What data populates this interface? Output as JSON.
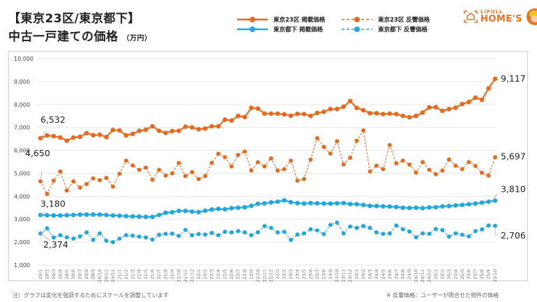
{
  "header": {
    "title_line1": "【東京23区/東京都下】",
    "title_line2": "中古一戸建ての価格",
    "unit": "（万円）"
  },
  "logo": {
    "brand_small": "LIFULL",
    "brand_big": "HOME'S"
  },
  "footer": {
    "note_left": "注）グラフは変化を強調するためにスケールを調整しています",
    "note_right": "※ 反響価格：ユーザーが問合せた物件の価格"
  },
  "colors": {
    "orange": "#e8691c",
    "blue": "#1ea7e1",
    "grid": "#e6e6e6",
    "axis_text": "#444444"
  },
  "chart_data": {
    "type": "line",
    "title": "【東京23区/東京都下】中古一戸建ての価格（万円）",
    "xlabel": "",
    "ylabel": "万円",
    "ylim": [
      1000,
      10000
    ],
    "yticks": [
      1000,
      2000,
      3000,
      4000,
      5000,
      6000,
      7000,
      8000,
      9000,
      10000
    ],
    "ytick_labels": [
      "1,000",
      "2,000",
      "3,000",
      "4,000",
      "5,000",
      "6,000",
      "7,000",
      "8,000",
      "9,000",
      "10,000"
    ],
    "grid": true,
    "legend_position": "top-center",
    "x": [
      "20/1",
      "20/2",
      "20/3",
      "20/4",
      "20/5",
      "20/6",
      "20/7",
      "20/8",
      "20/9",
      "20/10",
      "20/11",
      "20/12",
      "21/1",
      "21/2",
      "21/3",
      "21/4",
      "21/5",
      "21/6",
      "21/7",
      "21/8",
      "21/9",
      "21/10",
      "21/11",
      "21/12",
      "22/1",
      "22/2",
      "22/3",
      "22/4",
      "22/5",
      "22/6",
      "22/7",
      "22/8",
      "22/9",
      "22/10",
      "22/11",
      "22/12",
      "23/1",
      "23/2",
      "23/3",
      "23/4",
      "23/5",
      "23/6",
      "23/7",
      "23/8",
      "23/9",
      "23/10",
      "23/11",
      "23/12",
      "24/1",
      "24/2",
      "24/3",
      "24/4",
      "24/5",
      "24/6",
      "24/7",
      "24/8",
      "24/9",
      "24/10",
      "24/11",
      "24/12",
      "25/1",
      "25/2",
      "25/3",
      "25/4",
      "25/5",
      "25/6",
      "25/7",
      "25/8",
      "25/9",
      "25/10"
    ],
    "series": [
      {
        "name": "東京23区 掲載価格",
        "style": "solid",
        "color": "#e8691c",
        "values": [
          6532,
          6650,
          6620,
          6560,
          6420,
          6560,
          6590,
          6750,
          6660,
          6680,
          6580,
          6890,
          6870,
          6650,
          6720,
          6850,
          6900,
          7050,
          6850,
          6760,
          6840,
          6850,
          7030,
          7000,
          6920,
          6950,
          7050,
          7050,
          7340,
          7300,
          7500,
          7450,
          7850,
          7820,
          7600,
          7600,
          7600,
          7570,
          7510,
          7590,
          7580,
          7500,
          7630,
          7680,
          7800,
          7800,
          7900,
          8150,
          7850,
          7750,
          7620,
          7620,
          7580,
          7600,
          7580,
          7500,
          7440,
          7500,
          7650,
          7870,
          7880,
          7720,
          7800,
          7860,
          8020,
          8110,
          8300,
          8200,
          8700,
          9117
        ],
        "start_label": "6,532",
        "end_label": "9,117"
      },
      {
        "name": "東京23区 反響価格",
        "style": "dashed",
        "color": "#e8691c",
        "values": [
          4650,
          4100,
          4680,
          5080,
          4250,
          4650,
          4380,
          4530,
          4780,
          4700,
          4800,
          4420,
          4980,
          5550,
          5340,
          5150,
          5250,
          4720,
          5150,
          4900,
          5000,
          5450,
          4880,
          5050,
          4750,
          4880,
          5450,
          5850,
          5700,
          5300,
          5800,
          5950,
          5120,
          5480,
          5300,
          5650,
          5120,
          5180,
          5550,
          4680,
          4750,
          5600,
          6530,
          6150,
          5860,
          6400,
          5390,
          5680,
          6420,
          6870,
          5080,
          5330,
          5180,
          6230,
          5430,
          5550,
          5380,
          5030,
          5490,
          5150,
          4960,
          5120,
          5600,
          5330,
          5180,
          5490,
          5320,
          5020,
          4900,
          5697
        ],
        "start_label": "4,650",
        "end_label": "5,697"
      },
      {
        "name": "東京都下 掲載価格",
        "style": "solid",
        "color": "#1ea7e1",
        "values": [
          3180,
          3170,
          3160,
          3160,
          3170,
          3180,
          3200,
          3200,
          3200,
          3200,
          3180,
          3160,
          3150,
          3130,
          3120,
          3110,
          3100,
          3100,
          3180,
          3280,
          3300,
          3360,
          3360,
          3330,
          3310,
          3370,
          3420,
          3450,
          3430,
          3480,
          3500,
          3520,
          3580,
          3670,
          3690,
          3730,
          3760,
          3820,
          3740,
          3700,
          3680,
          3700,
          3690,
          3680,
          3680,
          3690,
          3700,
          3660,
          3650,
          3620,
          3580,
          3570,
          3560,
          3550,
          3530,
          3500,
          3490,
          3500,
          3480,
          3510,
          3520,
          3560,
          3570,
          3600,
          3620,
          3650,
          3680,
          3720,
          3760,
          3810
        ],
        "start_label": "3,180",
        "end_label": "3,810"
      },
      {
        "name": "東京都下 反響価格",
        "style": "dashed",
        "color": "#1ea7e1",
        "values": [
          2374,
          2600,
          2200,
          2300,
          2210,
          2150,
          2250,
          2420,
          2100,
          2380,
          2060,
          2000,
          2150,
          2300,
          2280,
          2240,
          2200,
          2110,
          2320,
          2360,
          2370,
          2270,
          2530,
          2300,
          2350,
          2330,
          2400,
          2300,
          2450,
          2420,
          2480,
          2420,
          2300,
          2430,
          2700,
          2620,
          2420,
          2450,
          2100,
          2330,
          2380,
          2560,
          2510,
          2350,
          2750,
          2850,
          2380,
          2680,
          2620,
          2700,
          2620,
          2420,
          2360,
          2380,
          2720,
          2560,
          2460,
          2210,
          2380,
          2360,
          2570,
          2520,
          2240,
          2380,
          2320,
          2250,
          2480,
          2550,
          2720,
          2706
        ],
        "start_label": "2,374",
        "end_label": "2,706"
      }
    ]
  }
}
